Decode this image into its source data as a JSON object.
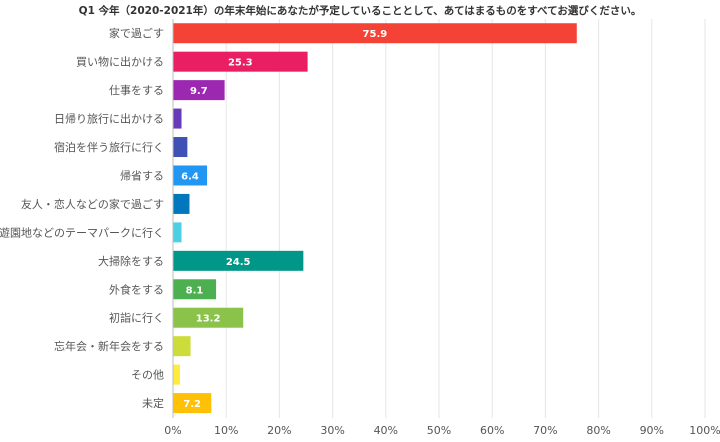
{
  "chart_data": {
    "type": "bar",
    "orientation": "horizontal",
    "title": "Q1 今年（2020-2021年）の年末年始にあなたが予定していることとして、あてはまるものをすべてお選びください。",
    "categories": [
      "家で過ごす",
      "買い物に出かける",
      "仕事をする",
      "日帰り旅行に出かける",
      "宿泊を伴う旅行に行く",
      "帰省する",
      "友人・恋人などの家で過ごす",
      "遊園地などのテーマパークに行く",
      "大掃除をする",
      "外食をする",
      "初詣に行く",
      "忘年会・新年会をする",
      "その他",
      "未定"
    ],
    "values": [
      75.9,
      25.3,
      9.7,
      1.6,
      2.7,
      6.4,
      3.1,
      1.6,
      24.5,
      8.1,
      13.2,
      3.3,
      1.3,
      7.2
    ],
    "data_labels": [
      "75.9",
      "25.3",
      "9.7",
      "",
      "",
      "6.4",
      "",
      "",
      "24.5",
      "8.1",
      "13.2",
      "",
      "",
      "7.2"
    ],
    "colors": [
      "#f44336",
      "#e91e63",
      "#9c27b0",
      "#673ab7",
      "#3f51b5",
      "#2196f3",
      "#0277bd",
      "#4dd0e1",
      "#009688",
      "#4caf50",
      "#8bc34a",
      "#cddc39",
      "#ffeb3b",
      "#ffc107"
    ],
    "x_ticks": [
      "0%",
      "10%",
      "20%",
      "30%",
      "40%",
      "50%",
      "60%",
      "70%",
      "80%",
      "90%",
      "100%"
    ],
    "xlim": [
      0,
      100
    ],
    "grid": true,
    "legend": "none"
  }
}
